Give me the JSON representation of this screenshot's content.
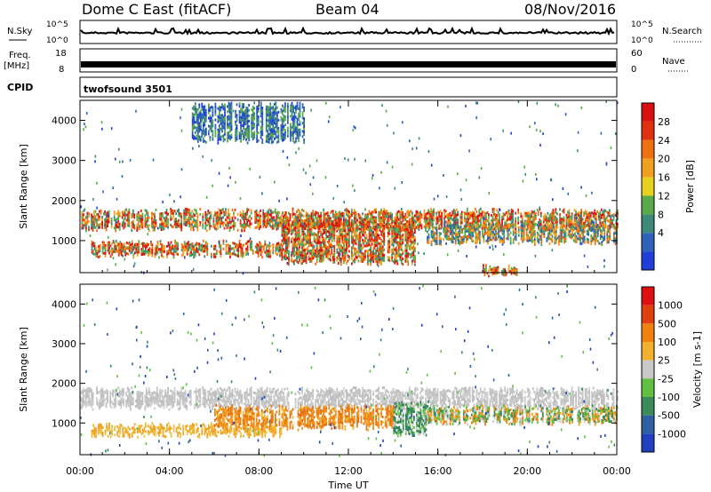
{
  "header": {
    "title": "Dome C East (fitACF)",
    "beam": "Beam 04",
    "date": "08/Nov/2016"
  },
  "panels": {
    "nsky": {
      "label": "N.Sky",
      "ticks": [
        "10^5",
        "10^0"
      ],
      "right_label": "N.Search",
      "right_ticks": [
        "10^5",
        "10^0"
      ]
    },
    "freq": {
      "label_line1": "Freq.",
      "label_line2": "[MHz]",
      "ticks": [
        "18",
        "8"
      ],
      "right_label": "Nave",
      "right_ticks": [
        "60",
        "0"
      ]
    },
    "cpid": {
      "label": "CPID",
      "value": "twofsound 3501"
    }
  },
  "chart_data": [
    {
      "type": "heatmap",
      "name": "power",
      "ylabel": "Slant Range [km]",
      "xlabel": "Time UT",
      "ylim": [
        200,
        4500
      ],
      "y_ticks": [
        "1000",
        "2000",
        "3000",
        "4000"
      ],
      "x_ticks": [
        "00:00",
        "04:00",
        "08:00",
        "12:00",
        "16:00",
        "20:00",
        "00:00"
      ],
      "colorbar": {
        "label": "Power [dB]",
        "ticks": [
          "4",
          "8",
          "12",
          "16",
          "20",
          "24",
          "28"
        ],
        "colors": [
          "#1f3fd8",
          "#2f63b8",
          "#3d8a7a",
          "#5aaa4a",
          "#e8d020",
          "#f0a020",
          "#f07010",
          "#e03010",
          "#d81010"
        ]
      },
      "bands": [
        {
          "t_start": 0.0,
          "t_end": 24.0,
          "y_start": 1350,
          "y_end": 1750,
          "level": "high"
        },
        {
          "t_start": 0.5,
          "t_end": 9.0,
          "y_start": 650,
          "y_end": 950,
          "level": "high"
        },
        {
          "t_start": 9.0,
          "t_end": 15.0,
          "y_start": 500,
          "y_end": 1500,
          "level": "high"
        },
        {
          "t_start": 15.5,
          "t_end": 24.0,
          "y_start": 1000,
          "y_end": 1400,
          "level": "medium"
        },
        {
          "t_start": 18.0,
          "t_end": 19.5,
          "y_start": 200,
          "y_end": 350,
          "level": "high"
        },
        {
          "t_start": 5.0,
          "t_end": 10.0,
          "y_start": 3500,
          "y_end": 4400,
          "level": "low"
        }
      ]
    },
    {
      "type": "heatmap",
      "name": "velocity",
      "ylabel": "Slant Range [km]",
      "xlabel": "Time UT",
      "ylim": [
        200,
        4500
      ],
      "y_ticks": [
        "1000",
        "2000",
        "3000",
        "4000"
      ],
      "x_ticks": [
        "00:00",
        "04:00",
        "08:00",
        "12:00",
        "16:00",
        "20:00",
        "00:00"
      ],
      "colorbar": {
        "label": "Velocity [m s-1]",
        "ticks": [
          "1000",
          "500",
          "100",
          "25",
          "-25",
          "-100",
          "-500",
          "-1000"
        ],
        "colors": [
          "#2040c0",
          "#3060a0",
          "#3a8a5a",
          "#60c040",
          "#c8c8c8",
          "#f0b030",
          "#f08010",
          "#e04010",
          "#e01010"
        ]
      },
      "bands": [
        {
          "t_start": 0.0,
          "t_end": 24.0,
          "y_start": 1400,
          "y_end": 1850,
          "level": "grey"
        },
        {
          "t_start": 0.5,
          "t_end": 9.0,
          "y_start": 700,
          "y_end": 950,
          "level": "orange-light"
        },
        {
          "t_start": 6.0,
          "t_end": 14.0,
          "y_start": 900,
          "y_end": 1400,
          "level": "orange"
        },
        {
          "t_start": 14.0,
          "t_end": 15.5,
          "y_start": 700,
          "y_end": 1500,
          "level": "green"
        },
        {
          "t_start": 15.5,
          "t_end": 24.0,
          "y_start": 1000,
          "y_end": 1400,
          "level": "mixed"
        }
      ]
    }
  ]
}
